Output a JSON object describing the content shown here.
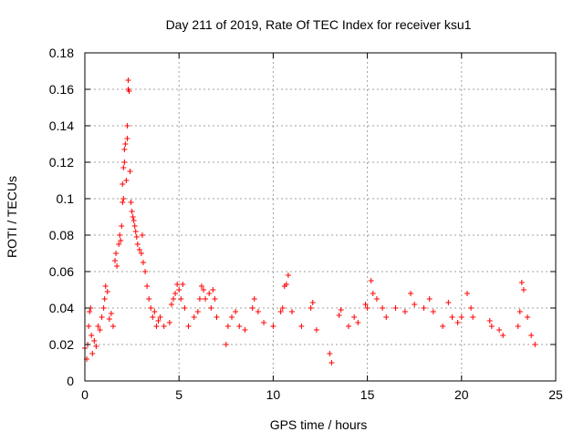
{
  "chart_data": {
    "type": "scatter",
    "title": "Day 211 of 2019, Rate Of TEC Index for receiver ksu1",
    "xlabel": "GPS time / hours",
    "ylabel": "ROTI / TECUs",
    "xlim": [
      0,
      25
    ],
    "ylim": [
      0,
      0.18
    ],
    "xticks": [
      0,
      5,
      10,
      15,
      20,
      25
    ],
    "xtick_labels": [
      "0",
      "5",
      "10",
      "15",
      "20",
      "25"
    ],
    "yticks": [
      0,
      0.02,
      0.04,
      0.06,
      0.08,
      0.1,
      0.12,
      0.14,
      0.16,
      0.18
    ],
    "ytick_labels": [
      "0",
      "0.02",
      "0.04",
      "0.06",
      "0.08",
      "0.1",
      "0.12",
      "0.14",
      "0.16",
      "0.18"
    ],
    "grid": true,
    "marker": "+",
    "color": "#ff0000",
    "series": [
      {
        "points": [
          [
            0.0,
            0.018
          ],
          [
            0.1,
            0.012
          ],
          [
            0.15,
            0.02
          ],
          [
            0.2,
            0.03
          ],
          [
            0.25,
            0.038
          ],
          [
            0.3,
            0.04
          ],
          [
            0.35,
            0.025
          ],
          [
            0.4,
            0.015
          ],
          [
            0.5,
            0.022
          ],
          [
            0.6,
            0.019
          ],
          [
            0.7,
            0.03
          ],
          [
            0.8,
            0.028
          ],
          [
            0.9,
            0.035
          ],
          [
            1.0,
            0.04
          ],
          [
            1.05,
            0.045
          ],
          [
            1.1,
            0.052
          ],
          [
            1.2,
            0.049
          ],
          [
            1.3,
            0.034
          ],
          [
            1.4,
            0.037
          ],
          [
            1.5,
            0.03
          ],
          [
            1.6,
            0.066
          ],
          [
            1.65,
            0.07
          ],
          [
            1.7,
            0.063
          ],
          [
            1.8,
            0.075
          ],
          [
            1.85,
            0.08
          ],
          [
            1.9,
            0.077
          ],
          [
            1.95,
            0.085
          ],
          [
            2.0,
            0.098
          ],
          [
            2.0,
            0.108
          ],
          [
            2.05,
            0.1
          ],
          [
            2.05,
            0.117
          ],
          [
            2.1,
            0.12
          ],
          [
            2.1,
            0.127
          ],
          [
            2.15,
            0.13
          ],
          [
            2.2,
            0.11
          ],
          [
            2.25,
            0.133
          ],
          [
            2.25,
            0.14
          ],
          [
            2.3,
            0.16
          ],
          [
            2.3,
            0.165
          ],
          [
            2.35,
            0.159
          ],
          [
            2.4,
            0.115
          ],
          [
            2.45,
            0.098
          ],
          [
            2.5,
            0.093
          ],
          [
            2.55,
            0.09
          ],
          [
            2.6,
            0.088
          ],
          [
            2.65,
            0.085
          ],
          [
            2.7,
            0.082
          ],
          [
            2.75,
            0.079
          ],
          [
            2.8,
            0.075
          ],
          [
            2.9,
            0.072
          ],
          [
            3.0,
            0.07
          ],
          [
            3.05,
            0.08
          ],
          [
            3.1,
            0.065
          ],
          [
            3.2,
            0.06
          ],
          [
            3.3,
            0.052
          ],
          [
            3.4,
            0.045
          ],
          [
            3.5,
            0.04
          ],
          [
            3.6,
            0.035
          ],
          [
            3.7,
            0.038
          ],
          [
            3.8,
            0.03
          ],
          [
            3.9,
            0.033
          ],
          [
            4.0,
            0.035
          ],
          [
            4.2,
            0.03
          ],
          [
            4.5,
            0.032
          ],
          [
            4.6,
            0.042
          ],
          [
            4.7,
            0.045
          ],
          [
            4.8,
            0.048
          ],
          [
            4.9,
            0.053
          ],
          [
            5.0,
            0.05
          ],
          [
            5.1,
            0.045
          ],
          [
            5.2,
            0.053
          ],
          [
            5.3,
            0.04
          ],
          [
            5.5,
            0.03
          ],
          [
            5.8,
            0.035
          ],
          [
            6.0,
            0.038
          ],
          [
            6.1,
            0.045
          ],
          [
            6.2,
            0.052
          ],
          [
            6.3,
            0.05
          ],
          [
            6.4,
            0.045
          ],
          [
            6.6,
            0.048
          ],
          [
            6.7,
            0.04
          ],
          [
            6.8,
            0.05
          ],
          [
            6.9,
            0.045
          ],
          [
            7.0,
            0.035
          ],
          [
            7.5,
            0.02
          ],
          [
            7.6,
            0.03
          ],
          [
            7.8,
            0.035
          ],
          [
            8.0,
            0.038
          ],
          [
            8.2,
            0.03
          ],
          [
            8.5,
            0.028
          ],
          [
            8.9,
            0.04
          ],
          [
            9.0,
            0.045
          ],
          [
            9.2,
            0.038
          ],
          [
            9.5,
            0.032
          ],
          [
            10.0,
            0.03
          ],
          [
            10.4,
            0.038
          ],
          [
            10.5,
            0.04
          ],
          [
            10.6,
            0.052
          ],
          [
            10.7,
            0.053
          ],
          [
            10.8,
            0.058
          ],
          [
            11.0,
            0.038
          ],
          [
            11.5,
            0.03
          ],
          [
            12.0,
            0.04
          ],
          [
            12.1,
            0.043
          ],
          [
            12.3,
            0.028
          ],
          [
            13.0,
            0.015
          ],
          [
            13.1,
            0.01
          ],
          [
            13.5,
            0.036
          ],
          [
            13.6,
            0.039
          ],
          [
            14.0,
            0.03
          ],
          [
            14.3,
            0.035
          ],
          [
            14.5,
            0.032
          ],
          [
            14.9,
            0.042
          ],
          [
            15.0,
            0.04
          ],
          [
            15.2,
            0.055
          ],
          [
            15.3,
            0.048
          ],
          [
            15.5,
            0.045
          ],
          [
            15.8,
            0.04
          ],
          [
            16.0,
            0.035
          ],
          [
            16.5,
            0.04
          ],
          [
            17.0,
            0.038
          ],
          [
            17.3,
            0.048
          ],
          [
            17.5,
            0.042
          ],
          [
            18.0,
            0.04
          ],
          [
            18.3,
            0.045
          ],
          [
            18.5,
            0.038
          ],
          [
            19.0,
            0.03
          ],
          [
            19.3,
            0.043
          ],
          [
            19.5,
            0.035
          ],
          [
            19.8,
            0.032
          ],
          [
            20.0,
            0.035
          ],
          [
            20.3,
            0.048
          ],
          [
            20.5,
            0.04
          ],
          [
            20.6,
            0.035
          ],
          [
            21.5,
            0.033
          ],
          [
            21.6,
            0.03
          ],
          [
            22.0,
            0.028
          ],
          [
            22.2,
            0.025
          ],
          [
            23.0,
            0.03
          ],
          [
            23.1,
            0.038
          ],
          [
            23.2,
            0.054
          ],
          [
            23.3,
            0.05
          ],
          [
            23.5,
            0.035
          ],
          [
            23.7,
            0.025
          ],
          [
            23.9,
            0.02
          ]
        ]
      }
    ]
  }
}
